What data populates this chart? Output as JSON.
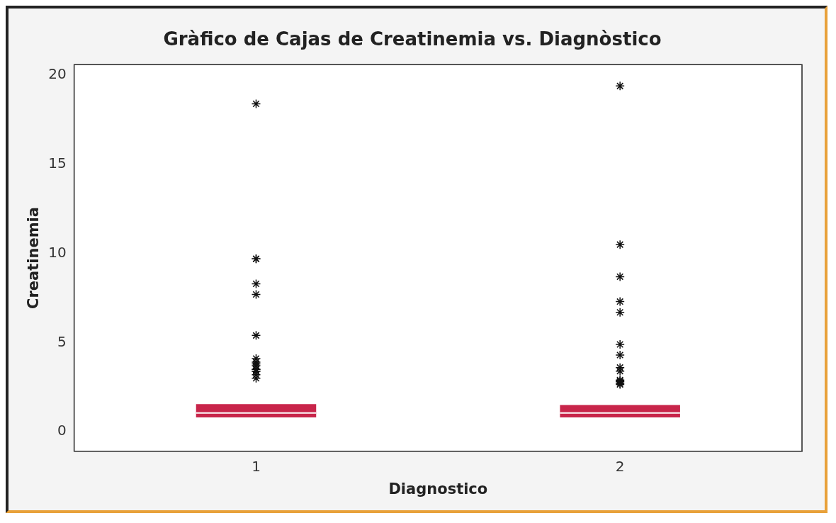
{
  "chart_data": {
    "type": "box",
    "title": "Gràfico de Cajas de Creatinemia vs. Diagnòstico",
    "xlabel": "Diagnostico",
    "ylabel": "Creatinemia",
    "categories": [
      "1",
      "2"
    ],
    "ylim": [
      -1.1,
      20.6
    ],
    "yticks": [
      0,
      5,
      10,
      15,
      20
    ],
    "grid": false,
    "marker": "star",
    "series": [
      {
        "color": "#c8254a",
        "boxes": [
          {
            "low": 0.8,
            "q1": 0.8,
            "median": 1.05,
            "q3": 1.55,
            "high": 1.55,
            "outliers": [
              18.4,
              9.7,
              9.7,
              8.3,
              7.7,
              5.4,
              4.1,
              3.9,
              3.8,
              3.7,
              3.5,
              3.5,
              3.4,
              3.4,
              3.2,
              3.0
            ]
          },
          {
            "low": 0.8,
            "q1": 0.8,
            "median": 1.05,
            "q3": 1.5,
            "high": 1.5,
            "outliers": [
              19.4,
              10.5,
              8.7,
              7.3,
              6.7,
              4.9,
              4.3,
              3.6,
              3.4,
              2.9,
              2.85,
              2.8,
              2.7,
              2.65
            ]
          }
        ]
      }
    ]
  }
}
